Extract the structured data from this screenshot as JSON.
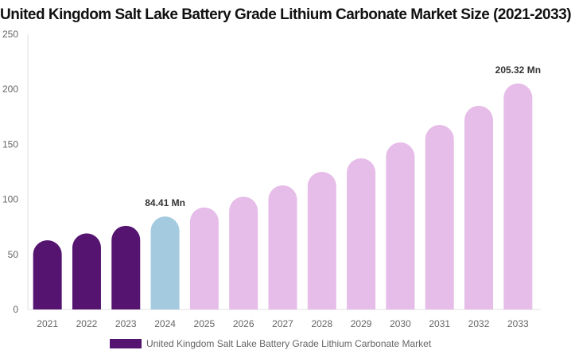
{
  "chart_data": {
    "type": "bar",
    "title": "United Kingdom Salt Lake Battery Grade Lithium Carbonate Market Size (2021-2033)",
    "categories": [
      "2021",
      "2022",
      "2023",
      "2024",
      "2025",
      "2026",
      "2027",
      "2028",
      "2029",
      "2030",
      "2031",
      "2032",
      "2033"
    ],
    "series": [
      {
        "name": "United Kingdom Salt Lake Battery Grade Lithium Carbonate Market",
        "values": [
          62.9,
          69.1,
          76.0,
          84.41,
          92.7,
          102.4,
          112.7,
          125.0,
          137.3,
          151.7,
          167.6,
          185.0,
          205.32
        ]
      }
    ],
    "bar_colors": [
      "#541470",
      "#541470",
      "#541470",
      "#a3cadf",
      "#e6bce8",
      "#e6bce8",
      "#e6bce8",
      "#e6bce8",
      "#e6bce8",
      "#e6bce8",
      "#e6bce8",
      "#e6bce8",
      "#e6bce8"
    ],
    "data_labels": [
      {
        "index": 3,
        "text": "84.41 Mn"
      },
      {
        "index": 12,
        "text": "205.32 Mn"
      }
    ],
    "yticks": [
      "0",
      "50",
      "100",
      "150",
      "200",
      "250"
    ],
    "ylim": [
      0,
      250
    ],
    "xlabel": "",
    "ylabel": "",
    "grid": false,
    "legend_position": "bottom"
  }
}
